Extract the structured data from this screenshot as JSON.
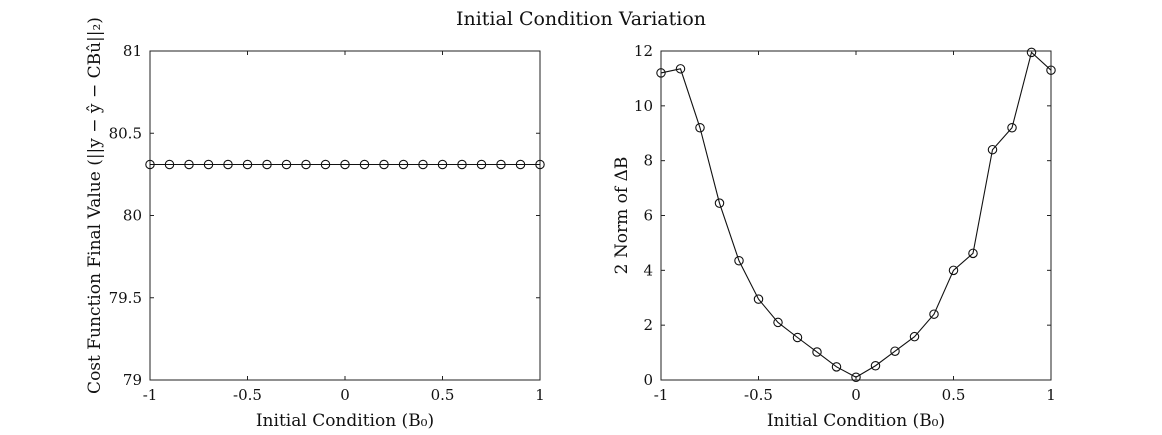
{
  "figure_title": "Initial Condition Variation",
  "chart_data": [
    {
      "type": "line",
      "xlabel": "Initial Condition (B₀)",
      "ylabel": "Cost Function Final Value (||y − ŷ − CBû||₂)",
      "xlim": [
        -1,
        1
      ],
      "ylim": [
        79,
        81
      ],
      "xticks": [
        -1,
        -0.5,
        0,
        0.5,
        1
      ],
      "xtick_labels": [
        "-1",
        "-0.5",
        "0",
        "0.5",
        "1"
      ],
      "yticks": [
        79,
        79.5,
        80,
        80.5,
        81
      ],
      "ytick_labels": [
        "79",
        "79.5",
        "80",
        "80.5",
        "81"
      ],
      "grid": false,
      "marker": "circle",
      "series": [
        {
          "x": [
            -1,
            -0.9,
            -0.8,
            -0.7,
            -0.6,
            -0.5,
            -0.4,
            -0.3,
            -0.2,
            -0.1,
            0,
            0.1,
            0.2,
            0.3,
            0.4,
            0.5,
            0.6,
            0.7,
            0.8,
            0.9,
            1
          ],
          "y": [
            80.31,
            80.31,
            80.31,
            80.31,
            80.31,
            80.31,
            80.31,
            80.31,
            80.31,
            80.31,
            80.31,
            80.31,
            80.31,
            80.31,
            80.31,
            80.31,
            80.31,
            80.31,
            80.31,
            80.31,
            80.31
          ]
        }
      ]
    },
    {
      "type": "line",
      "xlabel": "Initial Condition (B₀)",
      "ylabel": "2 Norm of ΔB",
      "xlim": [
        -1,
        1
      ],
      "ylim": [
        0,
        12
      ],
      "xticks": [
        -1,
        -0.5,
        0,
        0.5,
        1
      ],
      "xtick_labels": [
        "-1",
        "-0.5",
        "0",
        "0.5",
        "1"
      ],
      "yticks": [
        0,
        2,
        4,
        6,
        8,
        10,
        12
      ],
      "ytick_labels": [
        "0",
        "2",
        "4",
        "6",
        "8",
        "10",
        "12"
      ],
      "grid": false,
      "marker": "circle",
      "series": [
        {
          "x": [
            -1,
            -0.9,
            -0.8,
            -0.7,
            -0.6,
            -0.5,
            -0.4,
            -0.3,
            -0.2,
            -0.1,
            0,
            0.1,
            0.2,
            0.3,
            0.4,
            0.5,
            0.6,
            0.7,
            0.8,
            0.9,
            1
          ],
          "y": [
            11.2,
            11.35,
            9.2,
            6.45,
            4.35,
            2.95,
            2.1,
            1.55,
            1.02,
            0.48,
            0.1,
            0.52,
            1.05,
            1.58,
            2.4,
            4.0,
            4.62,
            8.4,
            9.2,
            11.95,
            11.3
          ]
        }
      ]
    }
  ]
}
